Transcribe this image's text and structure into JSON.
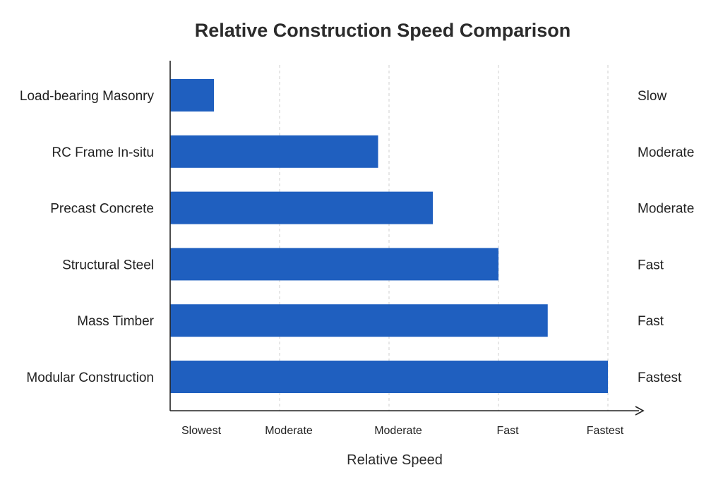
{
  "chart_data": {
    "type": "bar",
    "orientation": "horizontal",
    "title": "Relative Construction Speed Comparison",
    "xlabel": "Relative Speed",
    "ylabel": "",
    "categories": [
      "Load-bearing Masonry",
      "RC Frame In-situ",
      "Precast Concrete",
      "Structural Steel",
      "Mass Timber",
      "Modular Construction"
    ],
    "values": [
      0.4,
      1.9,
      2.4,
      3.0,
      3.45,
      4.0
    ],
    "ratings": [
      "Slow",
      "Moderate",
      "Moderate",
      "Fast",
      "Fast",
      "Fastest"
    ],
    "x_ticks": [
      {
        "value": 0,
        "label": "Slowest"
      },
      {
        "value": 1,
        "label": "Moderate"
      },
      {
        "value": 2,
        "label": "Moderate"
      },
      {
        "value": 3,
        "label": "Fast"
      },
      {
        "value": 4,
        "label": "Fastest"
      }
    ],
    "xlim": [
      0,
      4
    ],
    "grid": true,
    "bar_color": "#1f5fbf"
  }
}
